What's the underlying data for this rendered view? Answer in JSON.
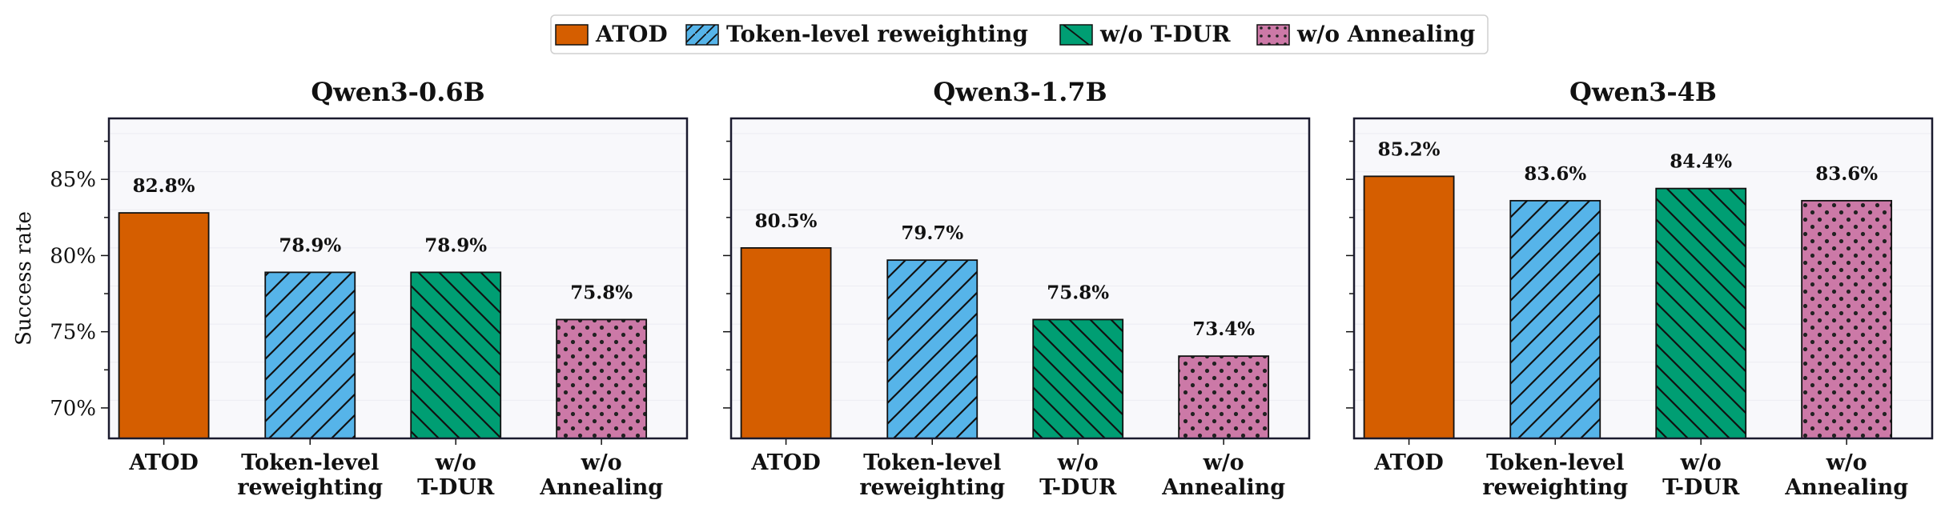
{
  "legend": {
    "placement": "top-center",
    "entries": [
      {
        "label": "ATOD",
        "color": "#D55E00",
        "hatch": "none"
      },
      {
        "label": "Token-level reweighting",
        "color": "#56B4E9",
        "hatch": "forward-diagonal"
      },
      {
        "label": "w/o T-DUR",
        "color": "#009E73",
        "hatch": "back-diagonal"
      },
      {
        "label": "w/o Annealing",
        "color": "#CC79A7",
        "hatch": "dots"
      }
    ]
  },
  "chart_data": [
    {
      "type": "bar",
      "title": "Qwen3-0.6B",
      "ylabel": "Success rate",
      "categories": [
        "ATOD",
        "Token-level\nreweighting",
        "w/o\nT-DUR",
        "w/o\nAnnealing"
      ],
      "values": [
        82.8,
        78.9,
        78.9,
        75.8
      ],
      "data_labels": [
        "82.8%",
        "78.9%",
        "78.9%",
        "75.8%"
      ],
      "ylim": [
        68,
        89
      ],
      "yticks": [
        70,
        75,
        80,
        85
      ],
      "ytick_labels": [
        "70%",
        "75%",
        "80%",
        "85%"
      ],
      "grid": true
    },
    {
      "type": "bar",
      "title": "Qwen3-1.7B",
      "ylabel": "",
      "categories": [
        "ATOD",
        "Token-level\nreweighting",
        "w/o\nT-DUR",
        "w/o\nAnnealing"
      ],
      "values": [
        80.5,
        79.7,
        75.8,
        73.4
      ],
      "data_labels": [
        "80.5%",
        "79.7%",
        "75.8%",
        "73.4%"
      ],
      "ylim": [
        68,
        89
      ],
      "yticks": [
        70,
        75,
        80,
        85
      ],
      "ytick_labels": [],
      "grid": true
    },
    {
      "type": "bar",
      "title": "Qwen3-4B",
      "ylabel": "",
      "categories": [
        "ATOD",
        "Token-level\nreweighting",
        "w/o\nT-DUR",
        "w/o\nAnnealing"
      ],
      "values": [
        85.2,
        83.6,
        84.4,
        83.6
      ],
      "data_labels": [
        "85.2%",
        "83.6%",
        "84.4%",
        "83.6%"
      ],
      "ylim": [
        68,
        89
      ],
      "yticks": [
        70,
        75,
        80,
        85
      ],
      "ytick_labels": [],
      "grid": true
    }
  ]
}
